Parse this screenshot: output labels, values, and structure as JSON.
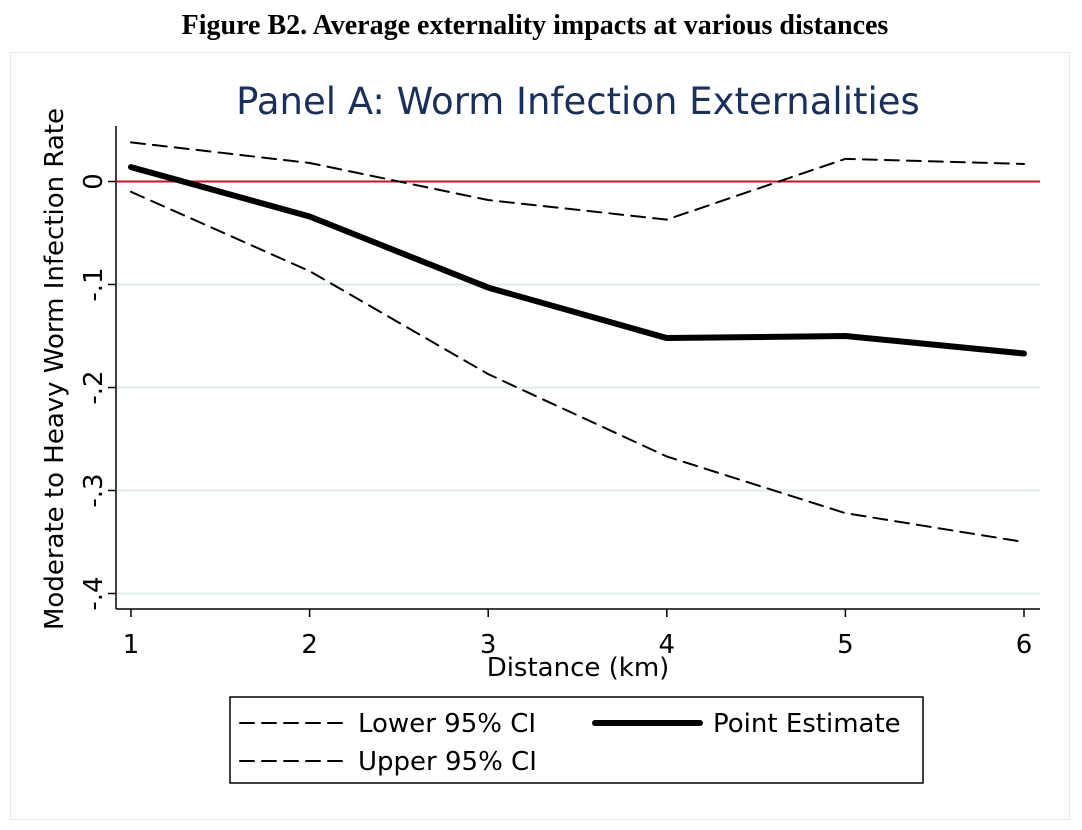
{
  "figure_title": "Figure B2. Average externality impacts at various distances",
  "chart_data": {
    "type": "line",
    "title": "Panel A: Worm Infection Externalities",
    "xlabel": "Distance (km)",
    "ylabel": "Moderate to Heavy Worm Infection Rate",
    "x": [
      1,
      2,
      3,
      4,
      5,
      6
    ],
    "xlim": [
      1,
      6
    ],
    "ylim": [
      -0.4,
      0.04
    ],
    "x_ticks": [
      "1",
      "2",
      "3",
      "4",
      "5",
      "6"
    ],
    "y_ticks": [
      {
        "value": 0,
        "label": "0"
      },
      {
        "value": -0.1,
        "label": "-.1"
      },
      {
        "value": -0.2,
        "label": "-.2"
      },
      {
        "value": -0.3,
        "label": "-.3"
      },
      {
        "value": -0.4,
        "label": "-.4"
      }
    ],
    "grid": true,
    "reference_line": {
      "y": 0,
      "color": "#c8102e"
    },
    "series": [
      {
        "name": "Lower 95% CI",
        "style": "dashed",
        "values": [
          -0.01,
          -0.087,
          -0.187,
          -0.267,
          -0.322,
          -0.35
        ]
      },
      {
        "name": "Upper 95% CI",
        "style": "dashed",
        "values": [
          0.038,
          0.018,
          -0.018,
          -0.037,
          0.022,
          0.017
        ]
      },
      {
        "name": "Point Estimate",
        "style": "solid-thick",
        "values": [
          0.014,
          -0.034,
          -0.103,
          -0.152,
          -0.15,
          -0.167
        ]
      }
    ],
    "legend": {
      "position": "bottom",
      "entries": [
        {
          "label": "Lower 95% CI",
          "style": "dashed"
        },
        {
          "label": "Point Estimate",
          "style": "solid-thick"
        },
        {
          "label": "Upper 95% CI",
          "style": "dashed"
        }
      ]
    },
    "colors": {
      "title": "#1a2f5a",
      "gridline": "#e1ecf0",
      "reference": "#c8102e",
      "line": "#000000"
    }
  }
}
